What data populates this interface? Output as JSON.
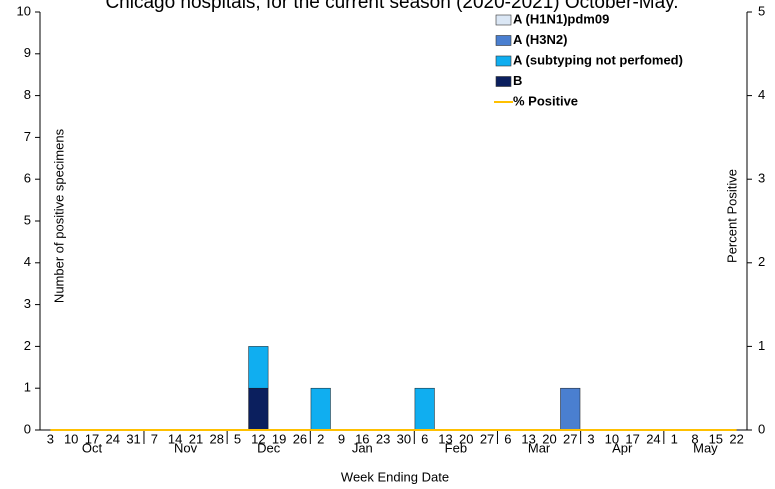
{
  "chart_data": {
    "type": "bar",
    "stacked": true,
    "title": "Chicago hospitals, for the current season (2020-2021) October-May.",
    "x_label": "Week Ending Date",
    "y_label": "Number of positive specimens",
    "y2_label": "Percent Positive",
    "category_groups": [
      {
        "label": "Oct",
        "categories": [
          "3",
          "10",
          "17",
          "24",
          "31"
        ]
      },
      {
        "label": "Nov",
        "categories": [
          "7",
          "14",
          "21",
          "28"
        ]
      },
      {
        "label": "Dec",
        "categories": [
          "5",
          "12",
          "19",
          "26"
        ]
      },
      {
        "label": "Jan",
        "categories": [
          "2",
          "9",
          "16",
          "23",
          "30"
        ]
      },
      {
        "label": "Feb",
        "categories": [
          "6",
          "13",
          "20",
          "27"
        ]
      },
      {
        "label": "Mar",
        "categories": [
          "6",
          "13",
          "20",
          "27"
        ]
      },
      {
        "label": "Apr",
        "categories": [
          "3",
          "10",
          "17",
          "24"
        ]
      },
      {
        "label": "May",
        "categories": [
          "1",
          "8",
          "15",
          "22"
        ]
      }
    ],
    "series": [
      {
        "name": "A (H1N1)pdm09",
        "color": "#dbe7f5",
        "values": [
          0,
          0,
          0,
          0,
          0,
          0,
          0,
          0,
          0,
          0,
          0,
          0,
          0,
          0,
          0,
          0,
          0,
          0,
          0,
          0,
          0,
          0,
          0,
          0,
          0,
          0,
          0,
          0,
          0,
          0,
          0,
          0,
          0,
          0
        ]
      },
      {
        "name": "A (H3N2)",
        "color": "#4a7fd0",
        "values": [
          0,
          0,
          0,
          0,
          0,
          0,
          0,
          0,
          0,
          0,
          0,
          0,
          0,
          0,
          0,
          0,
          0,
          0,
          0,
          0,
          0,
          0,
          0,
          0,
          0,
          1,
          0,
          0,
          0,
          0,
          0,
          0,
          0,
          0
        ]
      },
      {
        "name": "A (subtyping not perfomed)",
        "color": "#10aef0",
        "values": [
          0,
          0,
          0,
          0,
          0,
          0,
          0,
          0,
          0,
          0,
          1,
          0,
          0,
          1,
          0,
          0,
          0,
          0,
          1,
          0,
          0,
          0,
          0,
          0,
          0,
          0,
          0,
          0,
          0,
          0,
          0,
          0,
          0,
          0
        ]
      },
      {
        "name": "B",
        "color": "#0b1f5e",
        "values": [
          0,
          0,
          0,
          0,
          0,
          0,
          0,
          0,
          0,
          0,
          1,
          0,
          0,
          0,
          0,
          0,
          0,
          0,
          0,
          0,
          0,
          0,
          0,
          0,
          0,
          0,
          0,
          0,
          0,
          0,
          0,
          0,
          0,
          0
        ]
      },
      {
        "name": "% Positive",
        "type": "line",
        "axis": "y2",
        "color": "#ffc000",
        "values": [
          0,
          0,
          0,
          0,
          0,
          0,
          0,
          0,
          0,
          0,
          0,
          0,
          0,
          0,
          0,
          0,
          0,
          0,
          0,
          0,
          0,
          0,
          0,
          0,
          0,
          0,
          0,
          0,
          0,
          0,
          0,
          0,
          0,
          0
        ]
      }
    ],
    "ylim": [
      0,
      10
    ],
    "yticks": [
      0,
      1,
      2,
      3,
      4,
      5,
      6,
      7,
      8,
      9,
      10
    ],
    "y2lim": [
      0,
      5
    ],
    "y2ticks": [
      0,
      1,
      2,
      3,
      4,
      5
    ],
    "legend": "top-right"
  }
}
